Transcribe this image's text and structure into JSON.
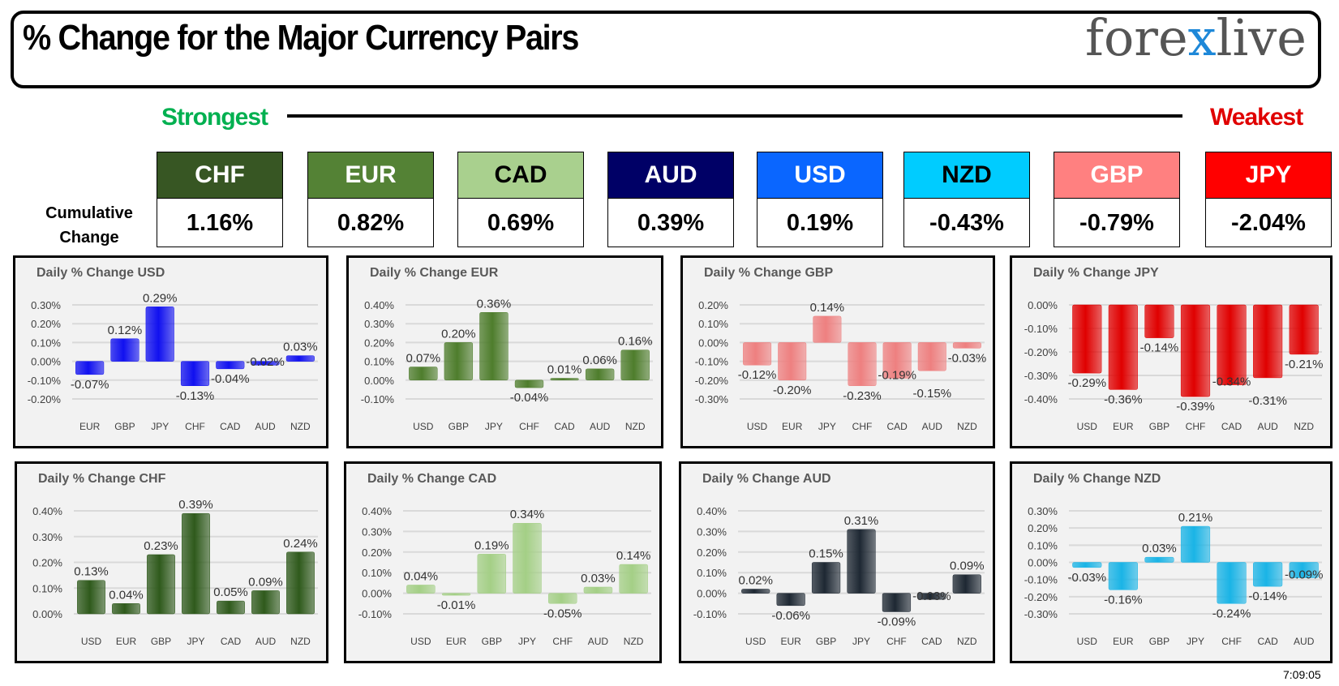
{
  "header": {
    "title": "% Change for the Major Currency Pairs",
    "logo": {
      "pre": "fore",
      "x": "x",
      "post": "live"
    }
  },
  "ranking": {
    "strongest": "Strongest",
    "weakest": "Weakest",
    "cumulative_label_1": "Cumulative",
    "cumulative_label_2": "Change",
    "currencies": [
      {
        "code": "CHF",
        "value": "1.16%",
        "bg": "#375623",
        "fg": "#ffffff"
      },
      {
        "code": "EUR",
        "value": "0.82%",
        "bg": "#548235",
        "fg": "#ffffff"
      },
      {
        "code": "CAD",
        "value": "0.69%",
        "bg": "#a9d08e",
        "fg": "#000000"
      },
      {
        "code": "AUD",
        "value": "0.39%",
        "bg": "#000066",
        "fg": "#ffffff"
      },
      {
        "code": "USD",
        "value": "0.19%",
        "bg": "#0a66ff",
        "fg": "#ffffff"
      },
      {
        "code": "NZD",
        "value": "-0.43%",
        "bg": "#00ccff",
        "fg": "#000000"
      },
      {
        "code": "GBP",
        "value": "-0.79%",
        "bg": "#ff8080",
        "fg": "#ffffff"
      },
      {
        "code": "JPY",
        "value": "-2.04%",
        "bg": "#ff0000",
        "fg": "#ffffff"
      }
    ]
  },
  "chart_data": [
    {
      "type": "bar",
      "title": "Daily % Change USD",
      "color": "#1010f0",
      "ylim": [
        -0.2,
        0.3
      ],
      "categories": [
        "EUR",
        "GBP",
        "JPY",
        "CHF",
        "CAD",
        "AUD",
        "NZD"
      ],
      "values": [
        -0.07,
        0.12,
        0.29,
        -0.13,
        -0.04,
        -0.02,
        0.03
      ],
      "grid": true
    },
    {
      "type": "bar",
      "title": "Daily % Change EUR",
      "color": "#4e7d2c",
      "ylim": [
        -0.1,
        0.4
      ],
      "categories": [
        "USD",
        "GBP",
        "JPY",
        "CHF",
        "CAD",
        "AUD",
        "NZD"
      ],
      "values": [
        0.07,
        0.2,
        0.36,
        -0.04,
        0.01,
        0.06,
        0.16
      ],
      "grid": true
    },
    {
      "type": "bar",
      "title": "Daily % Change GBP",
      "color": "#ee8080",
      "ylim": [
        -0.3,
        0.2
      ],
      "categories": [
        "USD",
        "EUR",
        "JPY",
        "CHF",
        "CAD",
        "AUD",
        "NZD"
      ],
      "values": [
        -0.12,
        -0.2,
        0.14,
        -0.23,
        -0.19,
        -0.15,
        -0.03
      ],
      "grid": true
    },
    {
      "type": "bar",
      "title": "Daily % Change JPY",
      "color": "#e00000",
      "ylim": [
        -0.4,
        0.0
      ],
      "categories": [
        "USD",
        "EUR",
        "GBP",
        "CHF",
        "CAD",
        "AUD",
        "NZD"
      ],
      "values": [
        -0.29,
        -0.36,
        -0.14,
        -0.39,
        -0.34,
        -0.31,
        -0.21
      ],
      "grid": true
    },
    {
      "type": "bar",
      "title": "Daily % Change CHF",
      "color": "#2f5a1c",
      "ylim": [
        0.0,
        0.4
      ],
      "categories": [
        "USD",
        "EUR",
        "GBP",
        "JPY",
        "CAD",
        "AUD",
        "NZD"
      ],
      "values": [
        0.13,
        0.04,
        0.23,
        0.39,
        0.05,
        0.09,
        0.24
      ],
      "grid": true
    },
    {
      "type": "bar",
      "title": "Daily % Change CAD",
      "color": "#a4cf86",
      "ylim": [
        -0.1,
        0.4
      ],
      "categories": [
        "USD",
        "EUR",
        "GBP",
        "JPY",
        "CHF",
        "AUD",
        "NZD"
      ],
      "values": [
        0.04,
        -0.01,
        0.19,
        0.34,
        -0.05,
        0.03,
        0.14
      ],
      "grid": true
    },
    {
      "type": "bar",
      "title": "Daily % Change AUD",
      "color": "#1e2833",
      "ylim": [
        -0.1,
        0.4
      ],
      "categories": [
        "USD",
        "EUR",
        "GBP",
        "JPY",
        "CHF",
        "CAD",
        "NZD"
      ],
      "values": [
        0.02,
        -0.06,
        0.15,
        0.31,
        -0.09,
        -0.03,
        0.09
      ],
      "grid": true
    },
    {
      "type": "bar",
      "title": "Daily % Change NZD",
      "color": "#1ab4e6",
      "ylim": [
        -0.3,
        0.3
      ],
      "categories": [
        "USD",
        "EUR",
        "GBP",
        "JPY",
        "CHF",
        "CAD",
        "AUD"
      ],
      "values": [
        -0.03,
        -0.16,
        0.03,
        0.21,
        -0.24,
        -0.14,
        -0.09
      ],
      "grid": true
    }
  ],
  "timestamp": "7:09:05"
}
